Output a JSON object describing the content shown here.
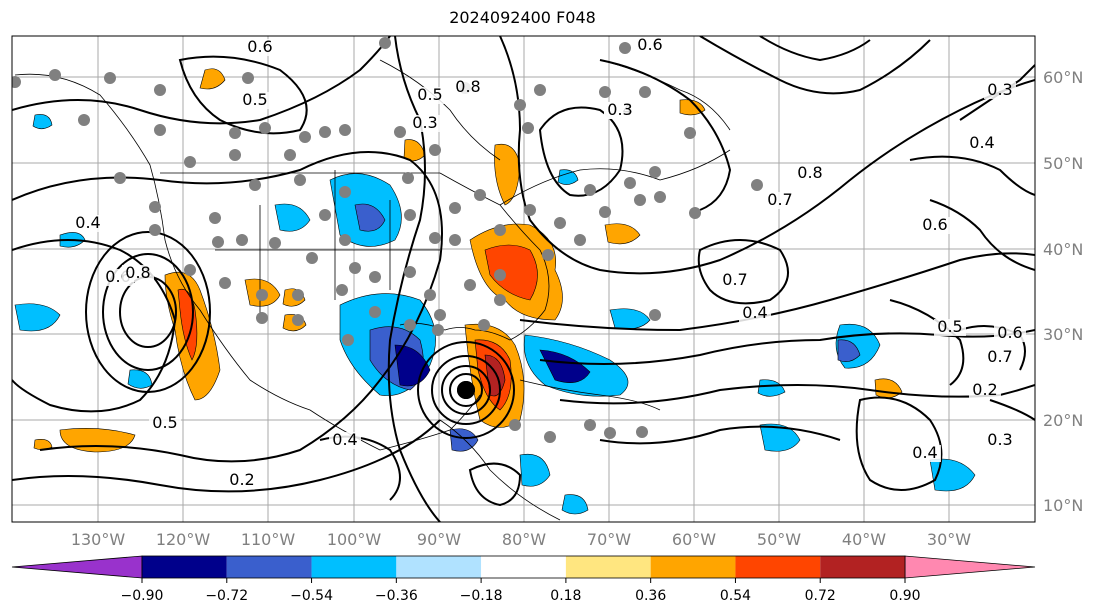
{
  "title": "2024092400 F048",
  "longitude_labels": [
    "130°W",
    "120°W",
    "110°W",
    "100°W",
    "90°W",
    "80°W",
    "70°W",
    "60°W",
    "50°W",
    "40°W",
    "30°W"
  ],
  "latitude_labels": [
    "60°N",
    "50°N",
    "40°N",
    "30°N",
    "20°N",
    "10°N"
  ],
  "contour_labels": [
    "0.4",
    "0.6",
    "0.8",
    "0.5",
    "0.5",
    "0.2",
    "0.6",
    "0.3",
    "0.5",
    "0.4",
    "0.3",
    "0.8",
    "0.7",
    "0.6",
    "0.4",
    "0.7",
    "0.5",
    "0.6",
    "0.7",
    "0.2",
    "0.3",
    "0.4",
    "0.4",
    "0.3",
    "0.6",
    "0.8",
    "0.4"
  ],
  "colorbar": {
    "ticks": [
      "−0.90",
      "−0.72",
      "−0.54",
      "−0.36",
      "−0.18",
      "0.18",
      "0.36",
      "0.54",
      "0.72",
      "0.90"
    ],
    "colors": [
      "#9932cc",
      "#00008b",
      "#3a5fcd",
      "#00bfff",
      "#b0e2ff",
      "#ffffff",
      "#ffe680",
      "#ffa500",
      "#ff4500",
      "#b22222",
      "#ff88b0"
    ]
  },
  "storm_marker": "hurricane-center"
}
